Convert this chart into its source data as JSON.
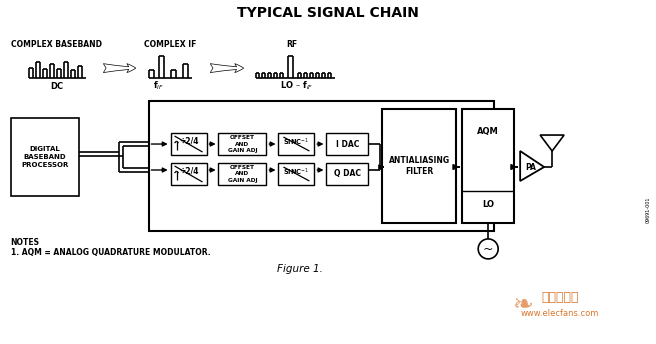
{
  "title": "TYPICAL SIGNAL CHAIN",
  "bg_color": "#ffffff",
  "text_color": "#000000",
  "figure_label": "Figure 1.",
  "notes_line1": "NOTES",
  "notes_line2": "1. AQM = ANALOG QUADRATURE MODULATOR.",
  "watermark1": "电子发烧友",
  "watermark2": "www.elecfans.com",
  "sidebar": "09691-001",
  "bb_label": "COMPLEX BASEBAND",
  "bb_sub": "DC",
  "if_label": "COMPLEX IF",
  "if_sub": "f",
  "rf_label": "RF",
  "rf_sub": "LO – f"
}
